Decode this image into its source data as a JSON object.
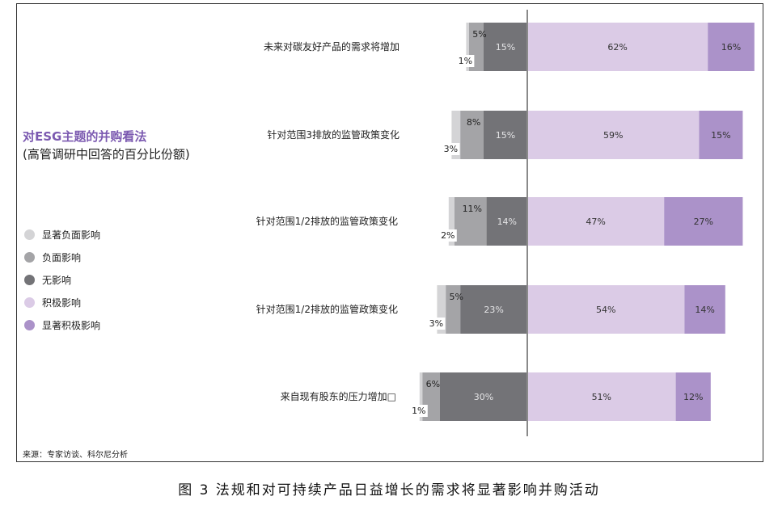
{
  "title": "对ESG主题的并购看法",
  "subtitle": "(高管调研中回答的百分比份额)",
  "legend": [
    {
      "label": "显著负面影响",
      "color": "#d4d4d6"
    },
    {
      "label": "负面影响",
      "color": "#a4a4a7"
    },
    {
      "label": "无影响",
      "color": "#737377"
    },
    {
      "label": "积极影响",
      "color": "#dbcbe6"
    },
    {
      "label": "显著积极影响",
      "color": "#ab92c9"
    }
  ],
  "source": "来源：专家访谈、科尔尼分析",
  "caption": "图 3  法规和对可持续产品日益增长的需求将显著影响并购活动",
  "chart_data": {
    "type": "bar",
    "orientation": "horizontal",
    "stacked": "diverging",
    "categories": [
      "未来对碳友好产品的需求将增加",
      "针对范围3排放的监管政策变化",
      "针对范围1/2排放的监管政策变化",
      "针对范围1/2排放的监管政策变化",
      "来自现有股东的压力增加□"
    ],
    "series": [
      {
        "name": "显著负面影响",
        "values": [
          1,
          3,
          2,
          3,
          1
        ]
      },
      {
        "name": "负面影响",
        "values": [
          5,
          8,
          11,
          5,
          6
        ]
      },
      {
        "name": "无影响",
        "values": [
          15,
          15,
          14,
          23,
          30
        ]
      },
      {
        "name": "积极影响",
        "values": [
          62,
          59,
          47,
          54,
          51
        ]
      },
      {
        "name": "显著积极影响",
        "values": [
          16,
          15,
          27,
          14,
          12
        ]
      }
    ],
    "labels": [
      [
        "1%",
        "5%",
        "15%",
        "62%",
        "16%"
      ],
      [
        "3%",
        "8%",
        "15%",
        "59%",
        "15%"
      ],
      [
        "2%",
        "11%",
        "14%",
        "47%",
        "27%"
      ],
      [
        "3%",
        "5%",
        "23%",
        "54%",
        "14%"
      ],
      [
        "1%",
        "6%",
        "30%",
        "51%",
        "12%"
      ]
    ],
    "colors": [
      "#d4d4d6",
      "#a4a4a7",
      "#737377",
      "#dbcbe6",
      "#ab92c9"
    ],
    "legend_position": "left"
  }
}
